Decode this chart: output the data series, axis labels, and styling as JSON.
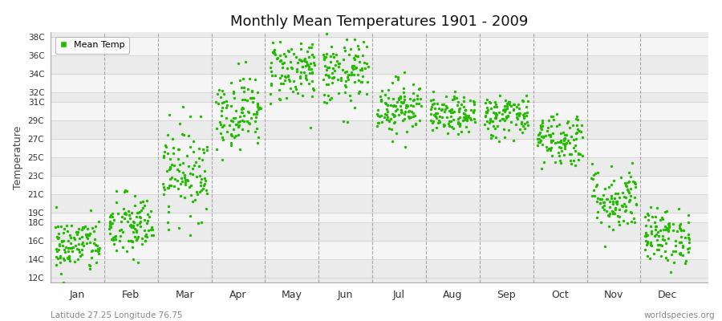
{
  "title": "Monthly Mean Temperatures 1901 - 2009",
  "ylabel": "Temperature",
  "subtitle_left": "Latitude 27.25 Longitude 76.75",
  "subtitle_right": "worldspecies.org",
  "legend_label": "Mean Temp",
  "dot_color": "#22BB00",
  "dot_size": 6,
  "bg_color": "#FFFFFF",
  "plot_bg_color": "#F0F0F0",
  "band_color_light": "#F8F8F8",
  "band_color_dark": "#E8E8E8",
  "ytick_labels": [
    "12C",
    "14C",
    "16C",
    "18C",
    "19C",
    "21C",
    "23C",
    "25C",
    "27C",
    "29C",
    "31C",
    "32C",
    "34C",
    "36C",
    "38C"
  ],
  "ytick_values": [
    12,
    14,
    16,
    18,
    19,
    21,
    23,
    25,
    27,
    29,
    31,
    32,
    34,
    36,
    38
  ],
  "ylim": [
    11.5,
    38.5
  ],
  "months": [
    "Jan",
    "Feb",
    "Mar",
    "Apr",
    "May",
    "Jun",
    "Jul",
    "Aug",
    "Sep",
    "Oct",
    "Nov",
    "Dec"
  ],
  "month_positions": [
    1,
    2,
    3,
    4,
    5,
    6,
    7,
    8,
    9,
    10,
    11,
    12
  ],
  "vline_color": "#888888",
  "hband_colors": [
    "#EBEBEB",
    "#F5F5F5"
  ],
  "seed": 42,
  "n_years": 109,
  "mean_temps": [
    15.5,
    17.5,
    23.5,
    30.0,
    34.5,
    34.0,
    30.5,
    29.5,
    29.5,
    27.0,
    20.5,
    16.5
  ],
  "spread": [
    1.5,
    1.8,
    2.5,
    2.0,
    1.8,
    1.8,
    1.5,
    1.0,
    1.2,
    1.5,
    1.8,
    1.5
  ],
  "xlim": [
    0.5,
    12.75
  ]
}
